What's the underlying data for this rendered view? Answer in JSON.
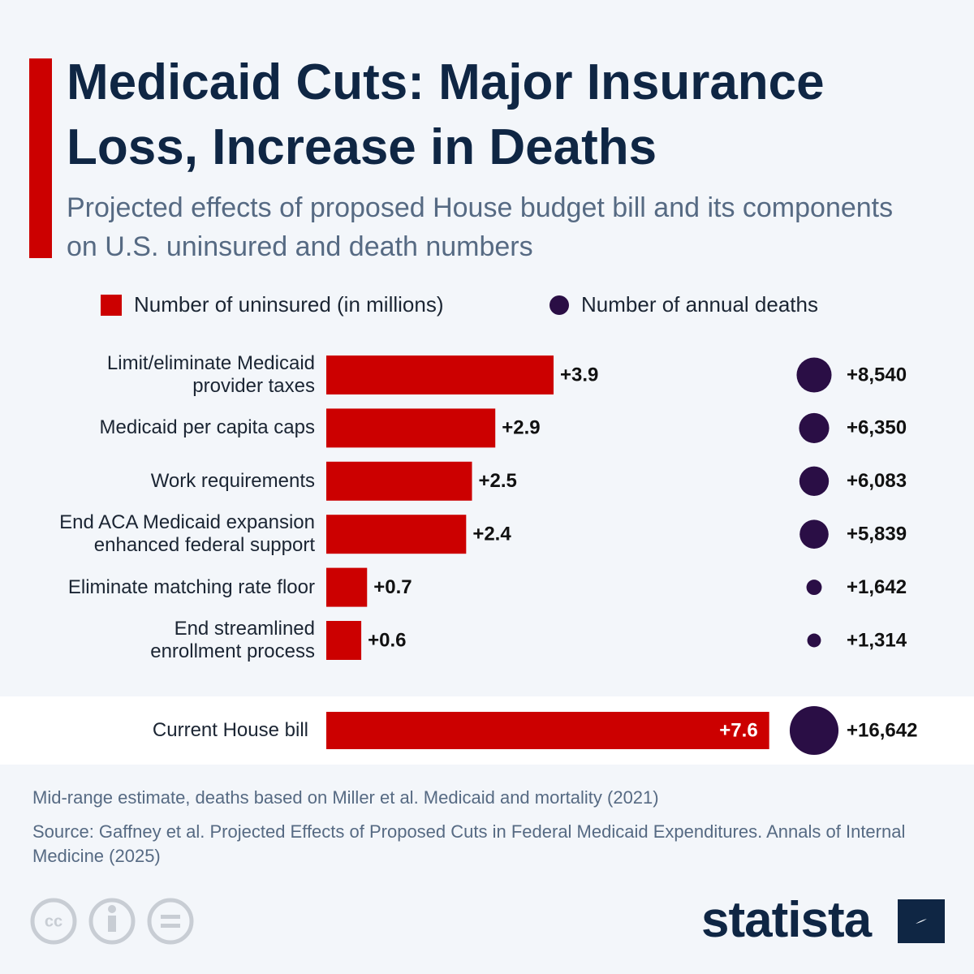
{
  "chart_data": {
    "type": "bar-bubble",
    "title": "Medicaid Cuts: Major Insurance Loss, Increase in Deaths",
    "subtitle": "Projected effects of proposed House budget bill and its components on U.S. uninsured and death numbers",
    "categories": [
      "Limit/eliminate Medicaid\nprovider taxes",
      "Medicaid per capita caps",
      "Work requirements",
      "End ACA Medicaid expansion\nenhanced federal support",
      "Eliminate matching rate floor",
      "End streamlined\nenrollment process",
      "Current House bill"
    ],
    "series": [
      {
        "name": "Number of uninsured (in millions)",
        "color": "#cc0000",
        "values": [
          3.9,
          2.9,
          2.5,
          2.4,
          0.7,
          0.6,
          7.6
        ],
        "value_labels": [
          "+3.9",
          "+2.9",
          "+2.5",
          "+2.4",
          "+0.7",
          "+0.6",
          "+7.6"
        ]
      },
      {
        "name": "Number of annual deaths",
        "color": "#2a0e45",
        "values": [
          8540,
          6350,
          6083,
          5839,
          1642,
          1314,
          16642
        ],
        "value_labels": [
          "+8,540",
          "+6,350",
          "+6,083",
          "+5,839",
          "+1,642",
          "+1,314",
          "+16,642"
        ]
      }
    ],
    "note": "Mid-range estimate, deaths based on Miller et al. Medicaid and mortality (2021)",
    "source": "Source: Gaffney et al. Projected Effects of Proposed Cuts in Federal Medicaid Expenditures. Annals of Internal Medicine (2025)",
    "brand": "statista"
  }
}
